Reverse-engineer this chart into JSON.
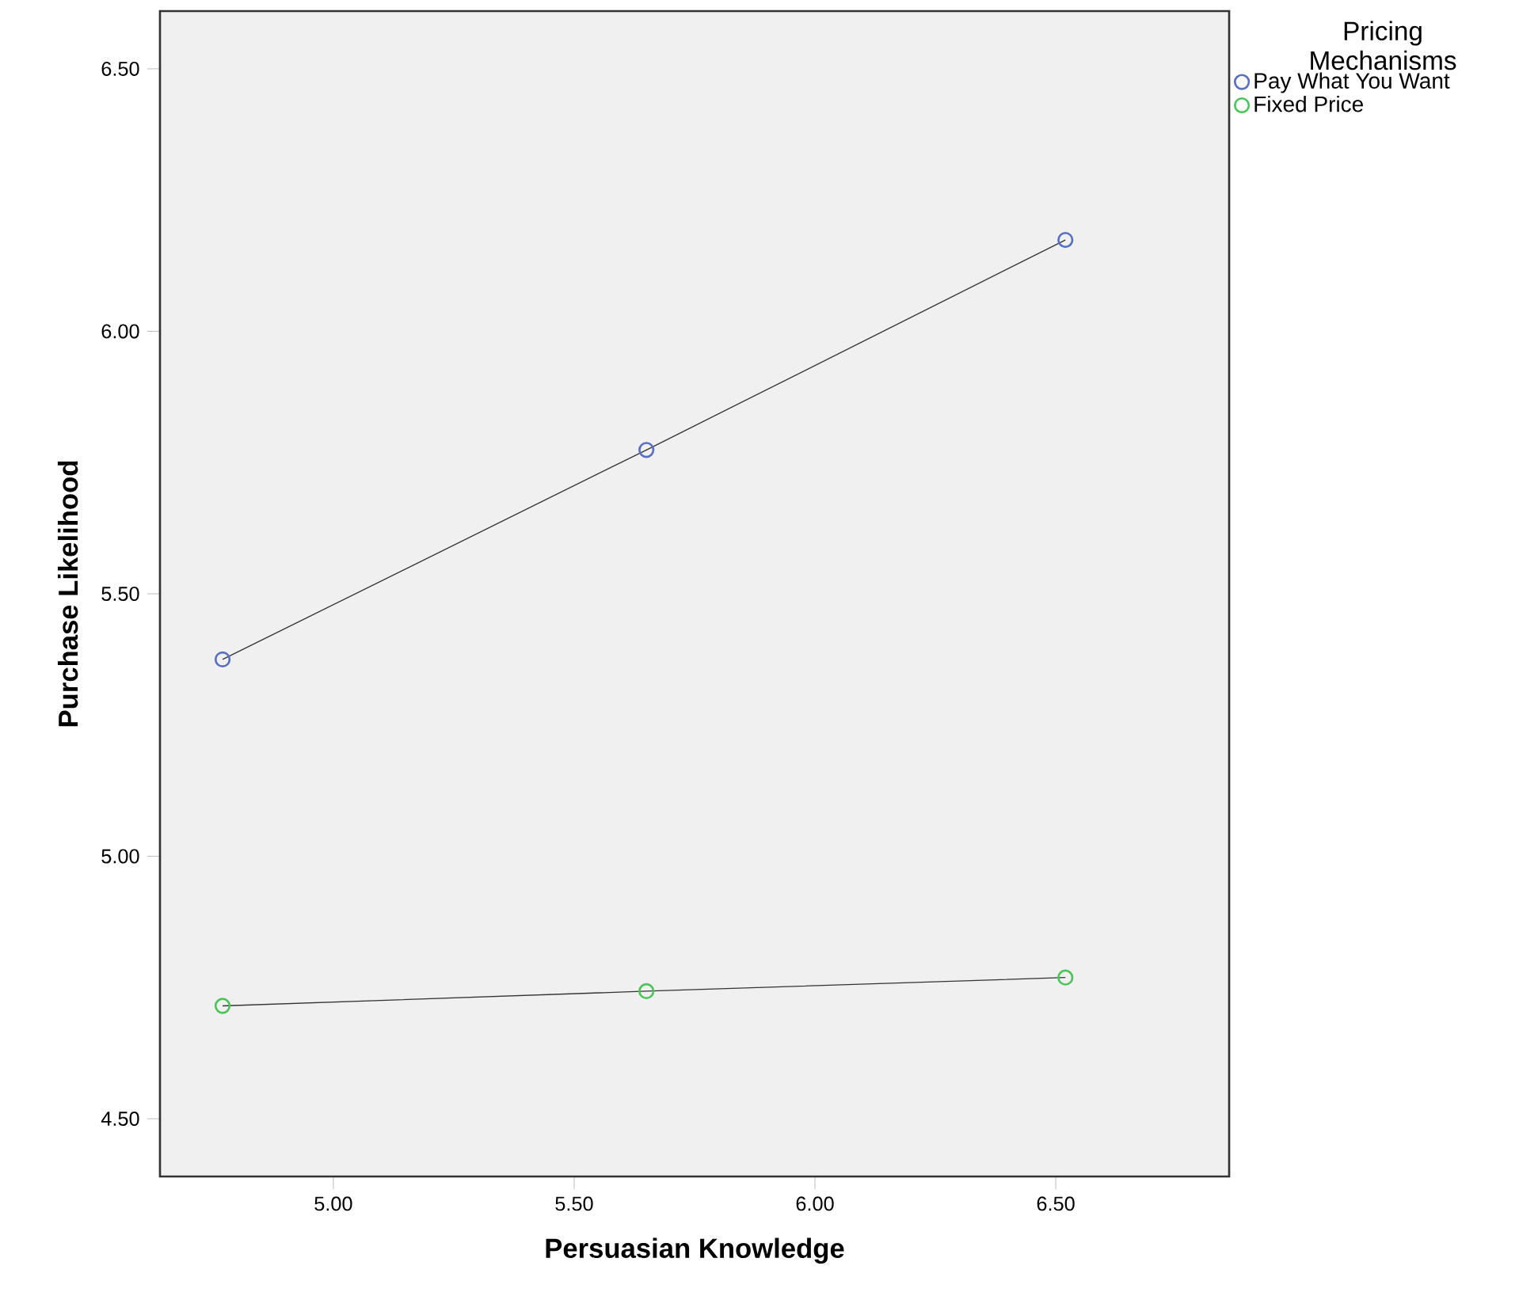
{
  "chart_data": {
    "type": "line",
    "xlabel": "Persuasian Knowledge",
    "ylabel": "Purchase Likelihood",
    "legend_title": "Pricing Mechanisms",
    "x": [
      4.77,
      5.65,
      6.52
    ],
    "xlim": [
      4.64,
      6.86
    ],
    "ylim": [
      4.39,
      6.61
    ],
    "xticks": [
      {
        "value": 5,
        "label": "5.00"
      },
      {
        "value": 5.5,
        "label": "5.50"
      },
      {
        "value": 6,
        "label": "6.00"
      },
      {
        "value": 6.5,
        "label": "6.50"
      }
    ],
    "yticks": [
      {
        "value": 4.5,
        "label": "4.50"
      },
      {
        "value": 5,
        "label": "5.00"
      },
      {
        "value": 5.5,
        "label": "5.50"
      },
      {
        "value": 6,
        "label": "6.00"
      },
      {
        "value": 6.5,
        "label": "6.50"
      }
    ],
    "series": [
      {
        "name": "Pay What You Want",
        "color": "#5a6fc4",
        "values": [
          5.375,
          5.774,
          6.174
        ]
      },
      {
        "name": "Fixed Price",
        "color": "#4cc45a",
        "values": [
          4.715,
          4.743,
          4.769
        ]
      }
    ],
    "marker": "circle",
    "line_style": "solid",
    "legend": "top right",
    "grid": false
  }
}
